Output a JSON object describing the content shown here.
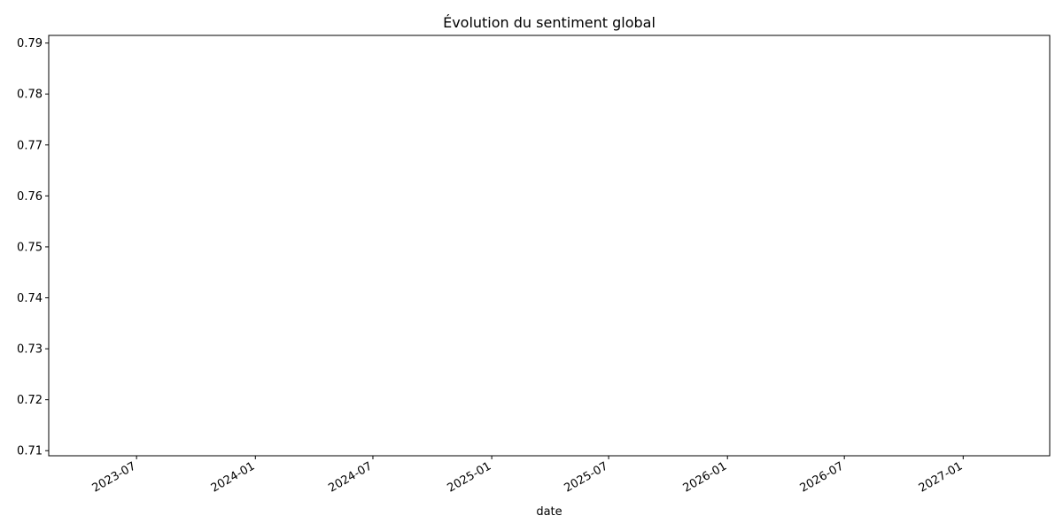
{
  "chart_data": {
    "type": "line",
    "title": "Évolution du sentiment global",
    "xlabel": "date",
    "ylabel": "",
    "series": [],
    "x_ticks": [
      "2023-07",
      "2024-01",
      "2024-07",
      "2025-01",
      "2025-07",
      "2026-01",
      "2026-07",
      "2027-01"
    ],
    "y_ticks": [
      "0.71",
      "0.72",
      "0.73",
      "0.74",
      "0.75",
      "0.76",
      "0.77",
      "0.78",
      "0.79"
    ],
    "ylim": [
      0.709,
      0.7915
    ],
    "xlim": [
      "2023-02-15",
      "2027-05-15"
    ],
    "grid": false,
    "legend": "none"
  }
}
